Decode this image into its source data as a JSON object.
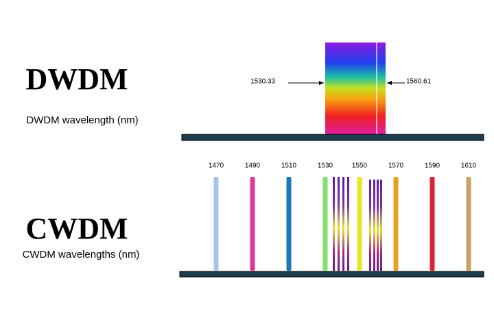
{
  "dwdm": {
    "title": "DWDM",
    "subtitle": "DWDM wavelength (nm)",
    "start_label": "1530.33",
    "end_label": "1560.61"
  },
  "cwdm": {
    "title": "CWDM",
    "subtitle": "CWDM wavelengths (nm)",
    "channels": [
      {
        "label": "1470",
        "color": "#a9c3e6"
      },
      {
        "label": "1490",
        "color": "#df3a9b"
      },
      {
        "label": "1510",
        "color": "#1b78b4"
      },
      {
        "label": "1530",
        "color": "#84df6e"
      },
      {
        "label": "1550",
        "color": "#e6e626"
      },
      {
        "label": "1570",
        "color": "#e4a122"
      },
      {
        "label": "1590",
        "color": "#dd2233"
      },
      {
        "label": "1610",
        "color": "#c9a264"
      }
    ]
  }
}
